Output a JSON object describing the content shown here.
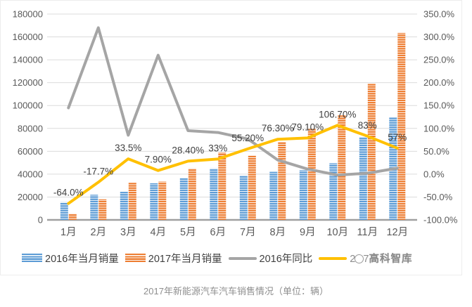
{
  "caption": "2017年新能源汽车汽车销售情况（单位：辆）",
  "watermark": {
    "brand": "高科智库"
  },
  "legend": {
    "items": [
      {
        "label": "2016年当月销量",
        "type": "bar",
        "color": "#5b9bd5"
      },
      {
        "label": "2017年当月销量",
        "type": "bar",
        "color": "#ed7d31"
      },
      {
        "label": "2016年同比",
        "type": "line",
        "color": "#a5a5a5"
      },
      {
        "label_pre": "2",
        "label_post": "7",
        "type": "line",
        "color": "#ffc000"
      }
    ]
  },
  "chart_data": {
    "type": "bar+line combo",
    "title": "2017年新能源汽车汽车销售情况（单位：辆）",
    "categories": [
      "1月",
      "2月",
      "3月",
      "4月",
      "5月",
      "6月",
      "7月",
      "8月",
      "9月",
      "10月",
      "11月",
      "12月"
    ],
    "left_axis": {
      "min": 0,
      "max": 180000,
      "step": 20000,
      "ticks": [
        180000,
        160000,
        140000,
        120000,
        100000,
        80000,
        60000,
        40000,
        20000,
        0
      ],
      "tick_labels": [
        "180000",
        "160000",
        "140000",
        "120000",
        "100000",
        "80000",
        "60000",
        "40000",
        "20000",
        "0"
      ]
    },
    "right_axis": {
      "min": -100,
      "max": 350,
      "step": 50,
      "format": "percent",
      "ticks": [
        350,
        300,
        250,
        200,
        150,
        100,
        50,
        0,
        -50,
        -100
      ],
      "tick_labels": [
        "350.0%",
        "300.0%",
        "250.0%",
        "200.0%",
        "150.0%",
        "100.0%",
        "50.0%",
        "0.0%",
        "-50.0%",
        "-100.0%"
      ]
    },
    "series": [
      {
        "name": "2016年当月销量",
        "type": "bar",
        "axis": "left",
        "color": "#5b9bd5",
        "values": [
          15500,
          22000,
          24500,
          32000,
          36500,
          45000,
          38500,
          42000,
          43500,
          49500,
          72500,
          90000
        ]
      },
      {
        "name": "2017年当月销量",
        "type": "bar",
        "axis": "left",
        "color": "#ed7d31",
        "values": [
          5600,
          18000,
          32500,
          33500,
          45000,
          59000,
          56500,
          68000,
          79500,
          91500,
          119000,
          163500
        ]
      },
      {
        "name": "2016年同比",
        "type": "line",
        "axis": "right",
        "color": "#a5a5a5",
        "values": [
          145,
          320,
          85,
          260,
          95,
          91,
          77,
          31,
          11,
          -2,
          2,
          13
        ]
      },
      {
        "name": "2017年同比",
        "type": "line",
        "axis": "right",
        "color": "#ffc000",
        "values": [
          -64.0,
          -17.7,
          33.5,
          7.9,
          28.4,
          33,
          55.2,
          76.3,
          79.1,
          106.7,
          83,
          57
        ],
        "labels": [
          "-64.0%",
          "-17.7%",
          "33.5%",
          "7.90%",
          "28.40%",
          "33%",
          "55.20%",
          "76.30%",
          "79.10%",
          "106.70%",
          "83%",
          "57%"
        ]
      }
    ],
    "legend_position": "bottom",
    "grid": true
  }
}
